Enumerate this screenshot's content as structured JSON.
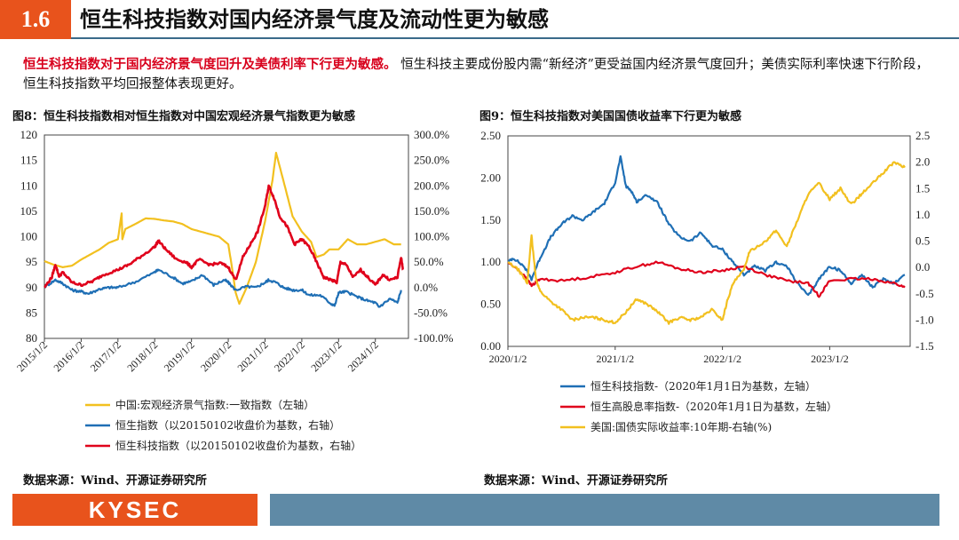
{
  "header": {
    "section_number": "1.6",
    "title": "恒生科技指数对国内经济景气度及流动性更为敏感"
  },
  "intro": {
    "highlight": "恒生科技指数对于国内经济景气度回升及美债利率下行更为敏感。",
    "body": " 恒生科技主要成份股内需“新经济”更受益国内经济景气度回升；美债实际利率快速下行阶段，恒生科技指数平均回报整体表现更好。"
  },
  "colors": {
    "accent": "#e8531c",
    "blue": "#1f6fb5",
    "red": "#e0001b",
    "yellow": "#f2c01f",
    "footer_bar": "#5f8aa6"
  },
  "chart_data": [
    {
      "type": "line",
      "figure_title": "图8：恒生科技指数相对恒生指数对中国宏观经济景气指数更为敏感",
      "left_ylim": [
        80,
        120
      ],
      "left_yticks": [
        "80",
        "85",
        "90",
        "95",
        "100",
        "105",
        "110",
        "115",
        "120"
      ],
      "right_ylim": [
        -100,
        300
      ],
      "right_yticks": [
        "-100.0%",
        "-50.0%",
        "0.0%",
        "50.0%",
        "100.0%",
        "150.0%",
        "200.0%",
        "250.0%",
        "300.0%"
      ],
      "xlim": [
        2015.0,
        2024.9
      ],
      "xticks": [
        2015.0,
        2016.0,
        2017.0,
        2018.0,
        2019.0,
        2020.0,
        2021.0,
        2022.0,
        2023.0,
        2024.0
      ],
      "xtick_labels": [
        "2015/1/2",
        "2016/1/2",
        "2017/1/2",
        "2018/1/2",
        "2019/1/2",
        "2020/1/2",
        "2021/1/2",
        "2022/1/2",
        "2023/1/2",
        "2024/1/2"
      ],
      "series": [
        {
          "name": "中国:宏观经济景气指数:一致指数（左轴）",
          "axis": "left",
          "color": "#f2c01f",
          "x": [
            2015.0,
            2015.25,
            2015.5,
            2015.75,
            2016.0,
            2016.25,
            2016.5,
            2016.75,
            2017.0,
            2017.1,
            2017.12,
            2017.2,
            2017.5,
            2017.75,
            2018.0,
            2018.25,
            2018.5,
            2018.75,
            2019.0,
            2019.25,
            2019.5,
            2019.75,
            2020.0,
            2020.1,
            2020.2,
            2020.3,
            2020.5,
            2020.75,
            2021.0,
            2021.2,
            2021.3,
            2021.5,
            2021.75,
            2022.0,
            2022.25,
            2022.4,
            2022.6,
            2022.75,
            2023.0,
            2023.25,
            2023.5,
            2023.75,
            2024.0,
            2024.25,
            2024.5,
            2024.7
          ],
          "y": [
            95.2,
            94.5,
            94.0,
            94.3,
            95.5,
            96.5,
            97.5,
            98.8,
            99.5,
            104.6,
            99.5,
            101.5,
            102.6,
            103.6,
            103.5,
            103.2,
            103.0,
            102.5,
            101.5,
            101.0,
            100.5,
            100.0,
            98.5,
            94.0,
            89.0,
            86.8,
            90.0,
            95.0,
            103.0,
            111.0,
            116.5,
            111.0,
            104.0,
            101.0,
            99.0,
            96.0,
            96.5,
            97.5,
            97.5,
            99.5,
            98.5,
            98.5,
            99.0,
            99.5,
            98.5,
            98.5
          ]
        },
        {
          "name": "恒生指数（以20150102收盘价为基数，右轴）",
          "axis": "right",
          "color": "#1f6fb5",
          "x": [
            2015.0,
            2015.3,
            2015.5,
            2015.75,
            2016.0,
            2016.2,
            2016.5,
            2016.75,
            2017.0,
            2017.5,
            2018.0,
            2018.1,
            2018.5,
            2018.75,
            2019.0,
            2019.3,
            2019.6,
            2019.9,
            2020.0,
            2020.2,
            2020.5,
            2020.75,
            2021.0,
            2021.1,
            2021.3,
            2021.5,
            2021.75,
            2022.0,
            2022.2,
            2022.5,
            2022.8,
            2022.9,
            2023.0,
            2023.2,
            2023.5,
            2023.75,
            2024.0,
            2024.1,
            2024.4,
            2024.6,
            2024.7
          ],
          "y": [
            1,
            15,
            8,
            -5,
            -8,
            -12,
            -3,
            0,
            0,
            12,
            30,
            35,
            20,
            8,
            12,
            25,
            5,
            15,
            10,
            -5,
            2,
            0,
            10,
            15,
            10,
            0,
            -5,
            -5,
            -15,
            -15,
            -32,
            -35,
            -10,
            -8,
            -18,
            -25,
            -30,
            -38,
            -22,
            -30,
            -5
          ]
        },
        {
          "name": "恒生科技指数（以20150102收盘价为基数，右轴）",
          "axis": "right",
          "color": "#e0001b",
          "x": [
            2015.0,
            2015.2,
            2015.3,
            2015.4,
            2015.5,
            2015.75,
            2016.0,
            2016.3,
            2016.6,
            2017.0,
            2017.3,
            2017.6,
            2018.0,
            2018.1,
            2018.3,
            2018.6,
            2018.85,
            2019.0,
            2019.2,
            2019.5,
            2019.8,
            2020.0,
            2020.2,
            2020.4,
            2020.6,
            2020.8,
            2021.0,
            2021.1,
            2021.25,
            2021.4,
            2021.6,
            2021.8,
            2022.0,
            2022.2,
            2022.4,
            2022.6,
            2022.8,
            2022.95,
            2023.05,
            2023.2,
            2023.4,
            2023.6,
            2023.8,
            2024.0,
            2024.2,
            2024.4,
            2024.6,
            2024.7,
            2024.75
          ],
          "y": [
            0,
            20,
            45,
            22,
            30,
            10,
            5,
            12,
            25,
            35,
            45,
            60,
            80,
            92,
            75,
            55,
            50,
            40,
            55,
            45,
            48,
            40,
            15,
            60,
            85,
            110,
            160,
            200,
            175,
            140,
            120,
            85,
            95,
            80,
            50,
            20,
            15,
            10,
            50,
            45,
            20,
            35,
            20,
            5,
            25,
            15,
            20,
            60,
            35
          ]
        }
      ]
    },
    {
      "type": "line",
      "figure_title": "图9：恒生科技指数对美国国债收益率下行更为敏感",
      "left_ylim": [
        0,
        2.5
      ],
      "left_yticks": [
        "0.00",
        "0.50",
        "1.00",
        "1.50",
        "2.00",
        "2.50"
      ],
      "right_ylim": [
        -1.5,
        2.5
      ],
      "right_yticks": [
        "-1.5",
        "-1.0",
        "-0.5",
        "0.0",
        "0.5",
        "1.0",
        "1.5",
        "2.0",
        "2.5"
      ],
      "xlim": [
        2020.0,
        2023.75
      ],
      "xticks": [
        2020.0,
        2021.0,
        2022.0,
        2023.0
      ],
      "xtick_labels": [
        "2020/1/2",
        "2021/1/2",
        "2022/1/2",
        "2023/1/2"
      ],
      "series": [
        {
          "name": "恒生科技指数-（2020年1月1日为基数，左轴）",
          "axis": "left",
          "color": "#1f6fb5",
          "x": [
            2020.0,
            2020.05,
            2020.15,
            2020.22,
            2020.3,
            2020.4,
            2020.5,
            2020.6,
            2020.7,
            2020.8,
            2020.9,
            2021.0,
            2021.05,
            2021.1,
            2021.15,
            2021.2,
            2021.3,
            2021.4,
            2021.5,
            2021.6,
            2021.7,
            2021.8,
            2021.9,
            2022.0,
            2022.1,
            2022.2,
            2022.3,
            2022.4,
            2022.5,
            2022.6,
            2022.7,
            2022.8,
            2022.9,
            2023.0,
            2023.1,
            2023.2,
            2023.3,
            2023.4,
            2023.5,
            2023.6,
            2023.7
          ],
          "y": [
            1.0,
            1.05,
            0.95,
            0.8,
            1.05,
            1.3,
            1.45,
            1.55,
            1.5,
            1.6,
            1.7,
            1.95,
            2.25,
            1.9,
            1.85,
            1.72,
            1.8,
            1.7,
            1.45,
            1.3,
            1.25,
            1.35,
            1.2,
            1.15,
            1.0,
            0.85,
            0.95,
            0.9,
            1.0,
            0.95,
            0.75,
            0.6,
            0.8,
            0.95,
            0.9,
            0.75,
            0.85,
            0.7,
            0.8,
            0.75,
            0.85
          ]
        },
        {
          "name": "恒生高股息率指数-（2020年1月1日为基数，左轴）",
          "axis": "left",
          "color": "#e0001b",
          "x": [
            2020.0,
            2020.15,
            2020.22,
            2020.3,
            2020.5,
            2020.75,
            2021.0,
            2021.2,
            2021.4,
            2021.6,
            2021.8,
            2022.0,
            2022.2,
            2022.4,
            2022.6,
            2022.8,
            2022.9,
            2023.0,
            2023.2,
            2023.4,
            2023.6,
            2023.7
          ],
          "y": [
            1.0,
            0.85,
            0.72,
            0.8,
            0.78,
            0.82,
            0.88,
            0.95,
            1.0,
            0.92,
            0.88,
            0.9,
            0.95,
            0.85,
            0.78,
            0.75,
            0.6,
            0.78,
            0.8,
            0.8,
            0.75,
            0.7
          ]
        },
        {
          "name": "美国:国债实际收益率:10年期-右轴(%)",
          "axis": "right",
          "color": "#f2c01f",
          "x": [
            2020.0,
            2020.1,
            2020.18,
            2020.22,
            2020.26,
            2020.3,
            2020.4,
            2020.5,
            2020.6,
            2020.7,
            2020.8,
            2020.9,
            2021.0,
            2021.1,
            2021.2,
            2021.3,
            2021.4,
            2021.5,
            2021.6,
            2021.7,
            2021.8,
            2021.9,
            2022.0,
            2022.05,
            2022.1,
            2022.2,
            2022.25,
            2022.4,
            2022.5,
            2022.6,
            2022.7,
            2022.8,
            2022.9,
            2023.0,
            2023.1,
            2023.2,
            2023.3,
            2023.4,
            2023.5,
            2023.6,
            2023.7
          ],
          "y": [
            0.1,
            -0.05,
            -0.3,
            0.6,
            -0.2,
            -0.45,
            -0.65,
            -0.8,
            -1.0,
            -0.95,
            -0.95,
            -1.0,
            -1.05,
            -0.85,
            -0.6,
            -0.7,
            -0.85,
            -1.05,
            -0.95,
            -1.0,
            -0.95,
            -0.8,
            -1.0,
            -0.6,
            -0.3,
            -0.05,
            0.3,
            0.5,
            0.7,
            0.4,
            0.9,
            1.4,
            1.6,
            1.3,
            1.5,
            1.2,
            1.4,
            1.6,
            1.8,
            2.0,
            1.9
          ]
        }
      ]
    }
  ],
  "sources": {
    "fig8": "数据来源：Wind、开源证券研究所",
    "fig9": "数据来源：Wind、开源证券研究所"
  },
  "footer": {
    "logo_text": "KYSEC"
  }
}
